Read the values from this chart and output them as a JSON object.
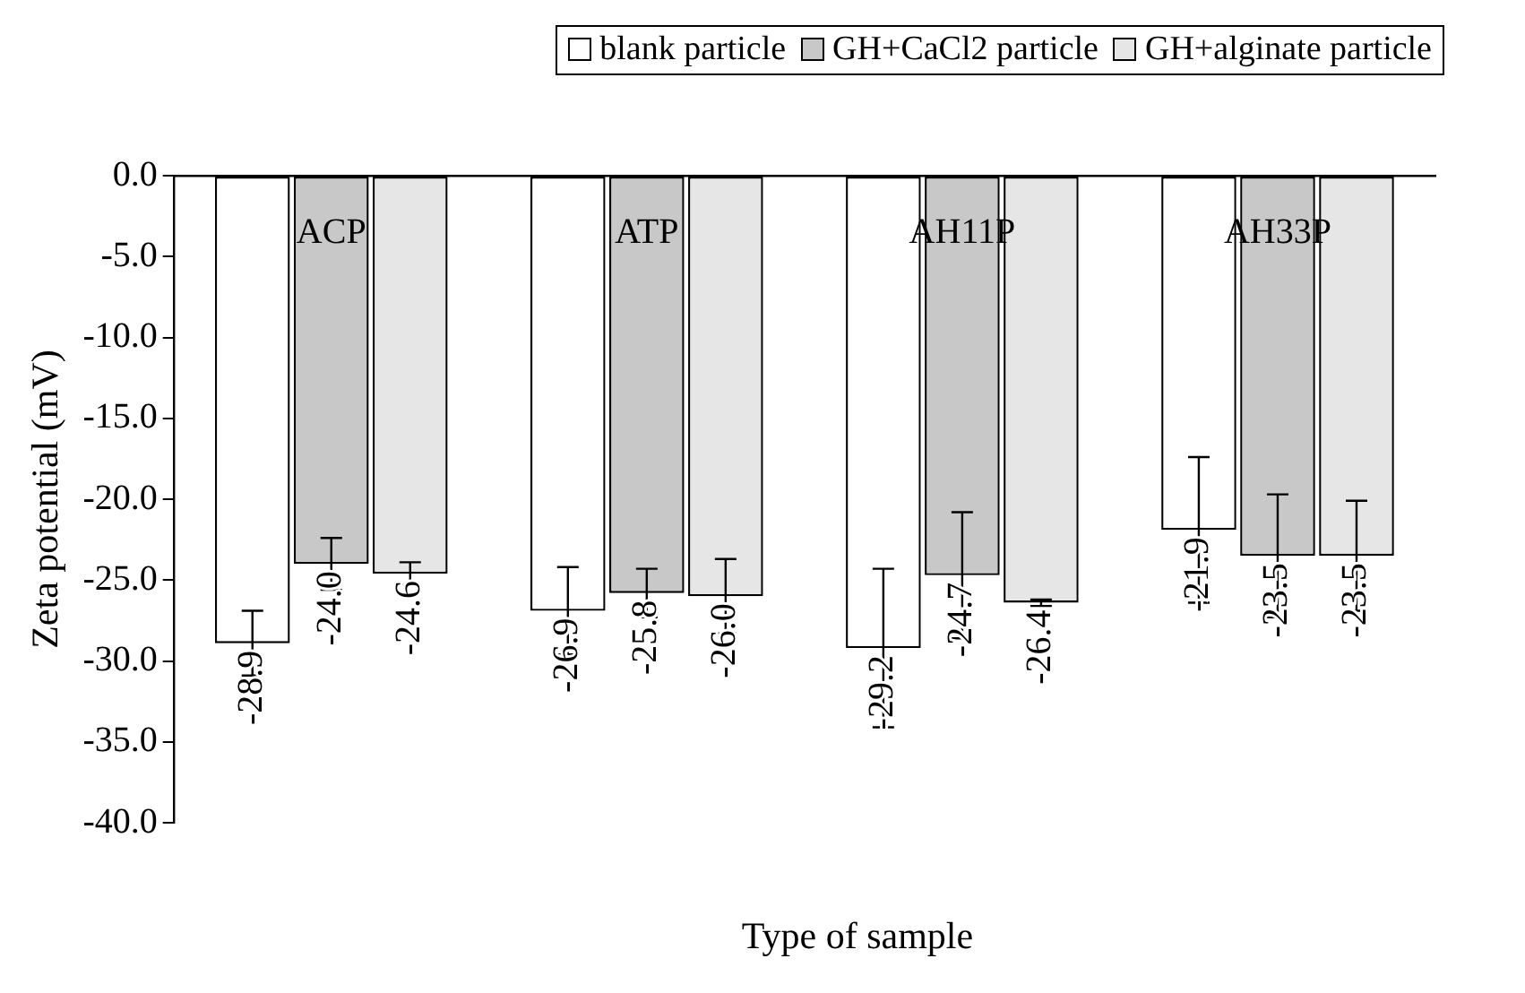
{
  "chart_data": {
    "type": "bar",
    "xlabel": "Type of sample",
    "ylabel": "Zeta potential (mV)",
    "categories": [
      "ACP",
      "ATP",
      "AH11P",
      "AH33P"
    ],
    "series": [
      {
        "name": "blank particle",
        "color": "#ffffff",
        "values": [
          -28.9,
          -26.9,
          -29.2,
          -21.9
        ],
        "value_labels": [
          "-28.9",
          "-26.9",
          "-29.2",
          "-21.9"
        ],
        "errors": [
          2.0,
          2.7,
          4.9,
          4.5
        ]
      },
      {
        "name": "GH+CaCl2 particle",
        "color": "#c8c8c8",
        "values": [
          -24.0,
          -25.8,
          -24.7,
          -23.5
        ],
        "value_labels": [
          "-24.0",
          "-25.8",
          "-24.7",
          "-23.5"
        ],
        "errors": [
          1.6,
          1.5,
          3.9,
          3.8
        ]
      },
      {
        "name": "GH+alginate particle",
        "color": "#e6e6e6",
        "values": [
          -24.6,
          -26.0,
          -26.4,
          -23.5
        ],
        "value_labels": [
          "-24.6",
          "-26.0",
          "-26.4",
          "-23.5"
        ],
        "errors": [
          0.7,
          2.3,
          0.2,
          3.4
        ]
      }
    ],
    "ylim": [
      -40,
      0
    ],
    "yticks": [
      {
        "value": 0,
        "label": "0.0"
      },
      {
        "value": -5,
        "label": "-5.0"
      },
      {
        "value": -10,
        "label": "-10.0"
      },
      {
        "value": -15,
        "label": "-15.0"
      },
      {
        "value": -20,
        "label": "-20.0"
      },
      {
        "value": -25,
        "label": "-25.0"
      },
      {
        "value": -30,
        "label": "-30.0"
      },
      {
        "value": -35,
        "label": "-35.0"
      },
      {
        "value": -40,
        "label": "-40.0"
      }
    ],
    "grid": false,
    "legend": "top right"
  }
}
